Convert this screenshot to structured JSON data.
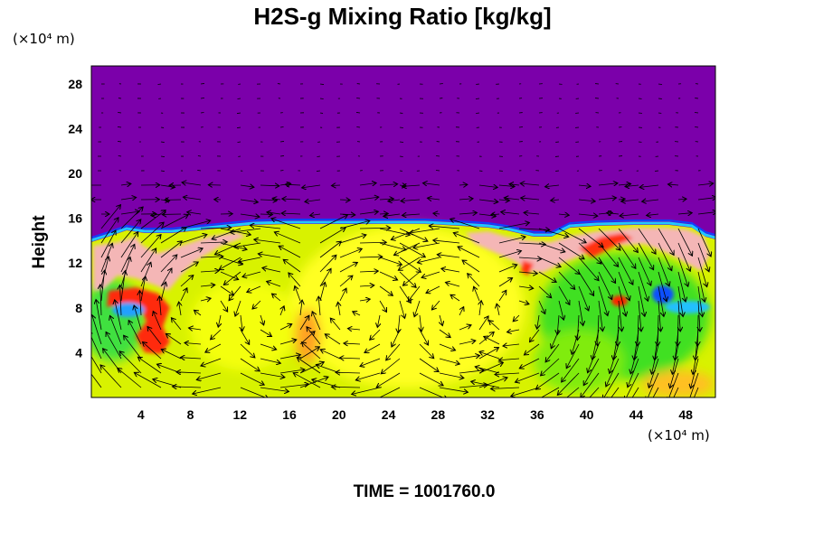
{
  "chart_data": {
    "type": "heatmap",
    "title": "H2S-g Mixing Ratio [kg/kg]",
    "xlabel": "",
    "ylabel": "Height",
    "x_unit": "(×10⁴ m)",
    "y_unit": "(×10⁴ m)",
    "xlim": [
      0,
      50.4
    ],
    "ylim": [
      0,
      29.6
    ],
    "x_ticks": [
      "4",
      "8",
      "12",
      "16",
      "20",
      "24",
      "28",
      "32",
      "36",
      "40",
      "44",
      "48"
    ],
    "y_ticks": [
      "4",
      "8",
      "12",
      "16",
      "20",
      "24",
      "28"
    ],
    "colorscale": [
      "#7b00aa",
      "#1030ff",
      "#20c0ff",
      "#30e040",
      "#c0f000",
      "#ffff00",
      "#ffa000",
      "#ff2000",
      "#f8b8b8"
    ],
    "background_color": "#7b00aa",
    "overlay": "velocity vectors",
    "time_label": "TIME = 1001760.0"
  }
}
